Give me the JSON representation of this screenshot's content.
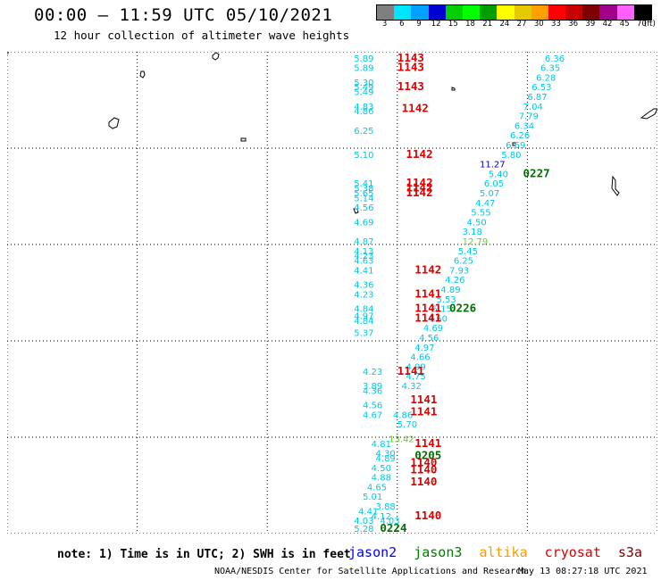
{
  "header": {
    "title": "00:00 – 11:59 UTC 05/10/2021",
    "subtitle": "12 hour collection of altimeter wave heights"
  },
  "colorbar": {
    "unit": "(ft)",
    "labels": [
      "3",
      "6",
      "9",
      "12",
      "15",
      "18",
      "21",
      "24",
      "27",
      "30",
      "33",
      "36",
      "39",
      "42",
      "45",
      "70"
    ],
    "colors": [
      "#7f7f7f",
      "#00e5ff",
      "#00a0ff",
      "#0000d0",
      "#00d000",
      "#00ff00",
      "#009f00",
      "#ffff00",
      "#e6c800",
      "#ff9f00",
      "#ff0000",
      "#c80000",
      "#800000",
      "#a0008c",
      "#ff60ff",
      "#000000"
    ]
  },
  "map": {
    "lon_ticks": [
      "135",
      "138",
      "141",
      "144",
      "147",
      "150"
    ],
    "lat_ticks": [
      "0",
      "2",
      "4",
      "6",
      "8",
      "10"
    ],
    "lon_range": [
      135,
      150
    ],
    "lat_range": [
      0,
      10
    ],
    "grid": "dotted"
  },
  "colors": {
    "wave_label": "#00c8e6",
    "jason2": "#0000ff",
    "jason3": "#008000",
    "altika": "#ff9900",
    "cryosat": "#dd0000",
    "s3a": "#800000",
    "time_red": "#dd0000",
    "time_green": "#007000",
    "high_wave": "#0000cc",
    "light_green": "#66cc33"
  },
  "observations": {
    "left_track": [
      {
        "lon": 143.0,
        "lat": 9.8,
        "value": "5.89"
      },
      {
        "lon": 143.0,
        "lat": 9.6,
        "value": "5.89"
      },
      {
        "lon": 143.0,
        "lat": 9.3,
        "value": "5.30"
      },
      {
        "lon": 143.0,
        "lat": 9.2,
        "value": "5.49"
      },
      {
        "lon": 143.0,
        "lat": 9.1,
        "value": "5.49"
      },
      {
        "lon": 143.0,
        "lat": 8.8,
        "value": "4.83"
      },
      {
        "lon": 143.0,
        "lat": 8.7,
        "value": "4.86"
      },
      {
        "lon": 143.0,
        "lat": 8.3,
        "value": "6.25"
      },
      {
        "lon": 143.0,
        "lat": 7.8,
        "value": "5.10"
      },
      {
        "lon": 143.0,
        "lat": 7.2,
        "value": "5.41"
      },
      {
        "lon": 143.0,
        "lat": 7.1,
        "value": "5.38"
      },
      {
        "lon": 143.0,
        "lat": 7.0,
        "value": "5.65"
      },
      {
        "lon": 143.0,
        "lat": 6.9,
        "value": "5.14"
      },
      {
        "lon": 143.0,
        "lat": 6.7,
        "value": "4.56"
      },
      {
        "lon": 143.0,
        "lat": 6.4,
        "value": "4.69"
      },
      {
        "lon": 143.0,
        "lat": 6.0,
        "value": "4.87"
      },
      {
        "lon": 143.0,
        "lat": 5.8,
        "value": "4.13"
      },
      {
        "lon": 143.0,
        "lat": 5.7,
        "value": "4.23"
      },
      {
        "lon": 143.0,
        "lat": 5.6,
        "value": "4.63"
      },
      {
        "lon": 143.0,
        "lat": 5.4,
        "value": "4.41"
      },
      {
        "lon": 143.0,
        "lat": 5.1,
        "value": "4.36"
      },
      {
        "lon": 143.0,
        "lat": 4.9,
        "value": "4.23"
      },
      {
        "lon": 143.0,
        "lat": 4.6,
        "value": "4.84"
      },
      {
        "lon": 143.0,
        "lat": 4.45,
        "value": "4.97"
      },
      {
        "lon": 143.0,
        "lat": 4.35,
        "value": "4.84"
      },
      {
        "lon": 143.0,
        "lat": 4.1,
        "value": "5.37"
      },
      {
        "lon": 143.2,
        "lat": 3.3,
        "value": "4.23"
      },
      {
        "lon": 143.2,
        "lat": 3.0,
        "value": "3.89"
      },
      {
        "lon": 143.2,
        "lat": 2.9,
        "value": "4.36"
      },
      {
        "lon": 143.2,
        "lat": 2.6,
        "value": "4.56"
      },
      {
        "lon": 143.2,
        "lat": 2.4,
        "value": "4.67"
      },
      {
        "lon": 143.4,
        "lat": 1.8,
        "value": "4.81"
      },
      {
        "lon": 143.5,
        "lat": 1.6,
        "value": "4.30"
      },
      {
        "lon": 143.5,
        "lat": 1.5,
        "value": "4.89"
      },
      {
        "lon": 143.4,
        "lat": 1.3,
        "value": "4.50"
      },
      {
        "lon": 143.4,
        "lat": 1.1,
        "value": "4.88"
      },
      {
        "lon": 143.3,
        "lat": 0.9,
        "value": "4.65"
      },
      {
        "lon": 143.2,
        "lat": 0.7,
        "value": "5.01"
      },
      {
        "lon": 143.1,
        "lat": 0.4,
        "value": "4.41"
      },
      {
        "lon": 143.0,
        "lat": 0.2,
        "value": "4.03"
      },
      {
        "lon": 143.0,
        "lat": 0.0,
        "value": "5.28"
      }
    ],
    "right_track": [
      {
        "lon": 147.4,
        "lat": 9.8,
        "value": "6.36"
      },
      {
        "lon": 147.3,
        "lat": 9.6,
        "value": "6.35"
      },
      {
        "lon": 147.2,
        "lat": 9.4,
        "value": "6.28"
      },
      {
        "lon": 147.1,
        "lat": 9.2,
        "value": "6.53"
      },
      {
        "lon": 147.0,
        "lat": 9.0,
        "value": "6.87"
      },
      {
        "lon": 146.9,
        "lat": 8.8,
        "value": "7.04"
      },
      {
        "lon": 146.8,
        "lat": 8.6,
        "value": "7.79"
      },
      {
        "lon": 146.7,
        "lat": 8.4,
        "value": "6.34"
      },
      {
        "lon": 146.6,
        "lat": 8.2,
        "value": "6.26"
      },
      {
        "lon": 146.5,
        "lat": 8.0,
        "value": "6.69"
      },
      {
        "lon": 146.4,
        "lat": 7.8,
        "value": "5.80"
      },
      {
        "lon": 146.1,
        "lat": 7.4,
        "value": "5.40"
      },
      {
        "lon": 146.0,
        "lat": 7.2,
        "value": "6.05"
      },
      {
        "lon": 145.9,
        "lat": 7.0,
        "value": "5.07"
      },
      {
        "lon": 145.8,
        "lat": 6.8,
        "value": "4.47"
      },
      {
        "lon": 145.7,
        "lat": 6.6,
        "value": "5.55"
      },
      {
        "lon": 145.6,
        "lat": 6.4,
        "value": "4.50"
      },
      {
        "lon": 145.5,
        "lat": 6.2,
        "value": "3.18"
      },
      {
        "lon": 145.4,
        "lat": 5.8,
        "value": "5.45"
      },
      {
        "lon": 145.3,
        "lat": 5.6,
        "value": "6.25"
      },
      {
        "lon": 145.2,
        "lat": 5.4,
        "value": "7.93"
      },
      {
        "lon": 145.1,
        "lat": 5.2,
        "value": "4.26"
      },
      {
        "lon": 145.0,
        "lat": 5.0,
        "value": "4.89"
      },
      {
        "lon": 144.9,
        "lat": 4.8,
        "value": "5.53"
      },
      {
        "lon": 144.8,
        "lat": 4.6,
        "value": "5.15"
      },
      {
        "lon": 144.7,
        "lat": 4.4,
        "value": "4.60"
      },
      {
        "lon": 144.6,
        "lat": 4.2,
        "value": "4.69"
      },
      {
        "lon": 144.5,
        "lat": 4.0,
        "value": "4.56"
      },
      {
        "lon": 144.4,
        "lat": 3.8,
        "value": "4.97"
      },
      {
        "lon": 144.3,
        "lat": 3.6,
        "value": "4.66"
      },
      {
        "lon": 144.2,
        "lat": 3.4,
        "value": "4.99"
      },
      {
        "lon": 144.2,
        "lat": 3.2,
        "value": "4.75"
      },
      {
        "lon": 144.1,
        "lat": 3.0,
        "value": "4.32"
      },
      {
        "lon": 144.0,
        "lat": 2.2,
        "value": "5.70"
      },
      {
        "lon": 143.9,
        "lat": 2.4,
        "value": "4.86"
      }
    ],
    "special": [
      {
        "lon": 145.9,
        "lat": 7.6,
        "value": "11.27",
        "style": "high_wave"
      },
      {
        "lon": 145.5,
        "lat": 6.0,
        "value": "12.79",
        "style": "light_green"
      },
      {
        "lon": 143.8,
        "lat": 1.9,
        "value": "13.42",
        "style": "light_green"
      },
      {
        "lon": 143.4,
        "lat": 0.3,
        "value": "4.12",
        "style": "normal"
      },
      {
        "lon": 143.5,
        "lat": 0.5,
        "value": "3.88",
        "style": "normal"
      },
      {
        "lon": 143.6,
        "lat": 0.2,
        "value": "4.03",
        "style": "normal"
      }
    ],
    "time_labels": [
      {
        "lon": 144.0,
        "lat": 9.8,
        "value": "1143",
        "style": "time_red"
      },
      {
        "lon": 144.0,
        "lat": 9.6,
        "value": "1143",
        "style": "time_red"
      },
      {
        "lon": 144.0,
        "lat": 9.2,
        "value": "1143",
        "style": "time_red"
      },
      {
        "lon": 144.1,
        "lat": 8.75,
        "value": "1142",
        "style": "time_red"
      },
      {
        "lon": 144.2,
        "lat": 7.8,
        "value": "1142",
        "style": "time_red"
      },
      {
        "lon": 144.2,
        "lat": 7.2,
        "value": "1142",
        "style": "time_red"
      },
      {
        "lon": 144.2,
        "lat": 7.1,
        "value": "1142",
        "style": "time_red"
      },
      {
        "lon": 144.2,
        "lat": 7.0,
        "value": "1142",
        "style": "time_red"
      },
      {
        "lon": 146.9,
        "lat": 7.4,
        "value": "0227",
        "style": "time_green"
      },
      {
        "lon": 144.4,
        "lat": 5.4,
        "value": "1142",
        "style": "time_red"
      },
      {
        "lon": 144.4,
        "lat": 4.9,
        "value": "1141",
        "style": "time_red"
      },
      {
        "lon": 144.4,
        "lat": 4.6,
        "value": "1141",
        "style": "time_red"
      },
      {
        "lon": 144.4,
        "lat": 4.4,
        "value": "1141",
        "style": "time_red"
      },
      {
        "lon": 145.2,
        "lat": 4.6,
        "value": "0226",
        "style": "time_green"
      },
      {
        "lon": 144.0,
        "lat": 3.3,
        "value": "1141",
        "style": "time_red"
      },
      {
        "lon": 144.3,
        "lat": 2.7,
        "value": "1141",
        "style": "time_red"
      },
      {
        "lon": 144.3,
        "lat": 2.45,
        "value": "1141",
        "style": "time_red"
      },
      {
        "lon": 144.4,
        "lat": 1.8,
        "value": "1141",
        "style": "time_red"
      },
      {
        "lon": 144.4,
        "lat": 1.55,
        "value": "0205",
        "style": "time_green"
      },
      {
        "lon": 144.3,
        "lat": 1.4,
        "value": "1140",
        "style": "time_red"
      },
      {
        "lon": 144.3,
        "lat": 1.25,
        "value": "1140",
        "style": "time_red"
      },
      {
        "lon": 144.3,
        "lat": 1.0,
        "value": "1140",
        "style": "time_red"
      },
      {
        "lon": 144.4,
        "lat": 0.3,
        "value": "1140",
        "style": "time_red"
      },
      {
        "lon": 143.6,
        "lat": 0.0,
        "value": "0224",
        "style": "time_green"
      }
    ]
  },
  "footer": {
    "note": "note: 1) Time is in UTC; 2) SWH is in feet",
    "legend": {
      "jason2": "jason2",
      "jason3": "jason3",
      "altika": "altika",
      "cryosat": "cryosat",
      "s3a": "s3a"
    },
    "credit": "NOAA/NESDIS Center for Satellite Applications and Research",
    "timestamp": "May 13 08:27:18 UTC 2021"
  }
}
